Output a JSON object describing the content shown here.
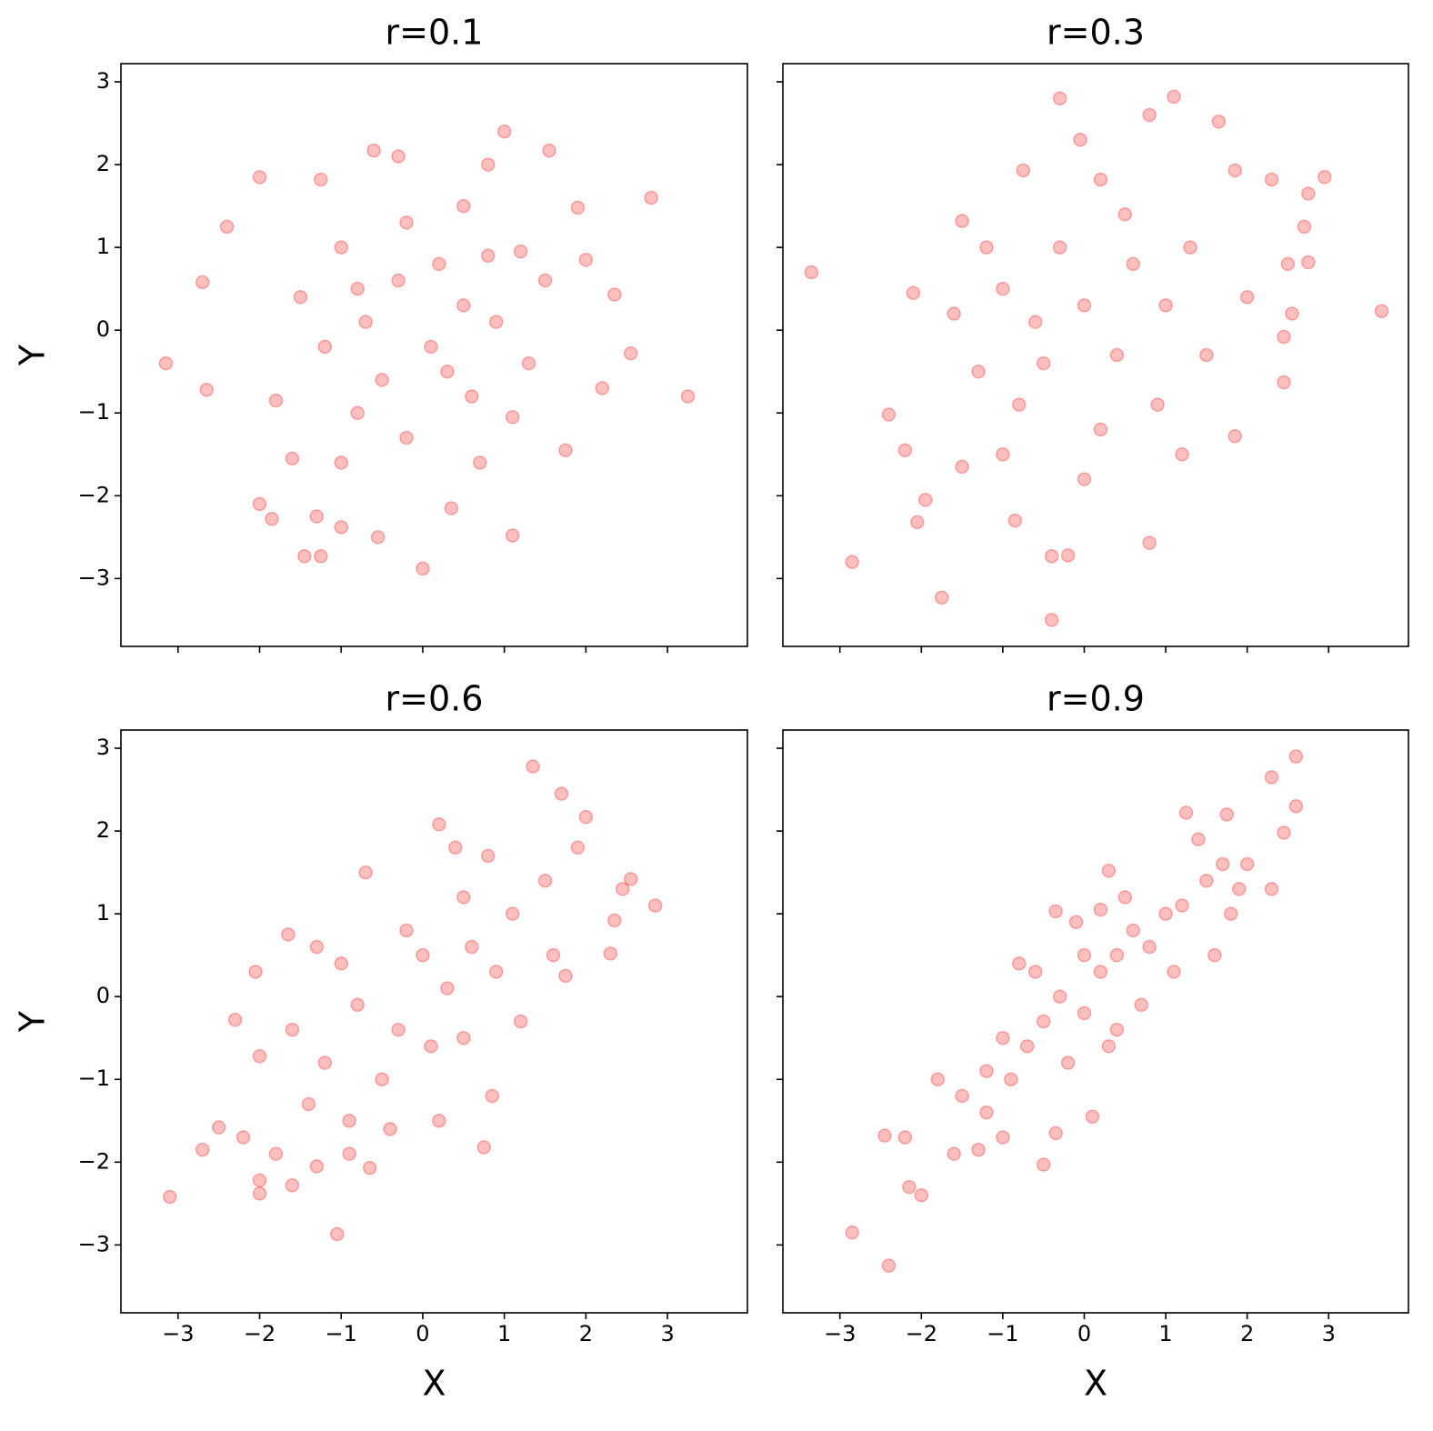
{
  "chart_data": [
    {
      "type": "scatter",
      "title": "r=0.1",
      "ylabel": "Y",
      "color": "#ff0000",
      "xlim": [
        -3.7,
        3.98
      ],
      "ylim": [
        -3.82,
        3.22
      ],
      "xticks": [
        -3,
        -2,
        -1,
        0,
        1,
        2,
        3
      ],
      "show_xtick_labels": false,
      "yticks": [
        {
          "value": -3,
          "label": "−3"
        },
        {
          "value": -2,
          "label": "−2"
        },
        {
          "value": -1,
          "label": "−1"
        },
        0,
        1,
        2,
        3
      ],
      "show_ytick_labels": true,
      "x": [
        -3.15,
        3.25,
        2.8,
        -2.4,
        -2.7,
        -2.65,
        -2.0,
        -2.0,
        -1.85,
        -1.45,
        -1.25,
        0.0,
        1.1,
        1.0,
        1.55,
        -0.6,
        -0.3,
        0.8,
        2.55,
        2.35,
        2.2,
        1.75,
        0.35,
        -0.55,
        -1.0,
        -1.3,
        -1.25,
        1.9,
        2.0,
        -1.6,
        -1.8,
        -1.5,
        -1.0,
        -0.7,
        -0.3,
        0.2,
        0.5,
        0.8,
        1.2,
        1.5,
        0.6,
        0.3,
        -0.2,
        -0.8,
        -1.2,
        0.1,
        -0.5,
        1.1,
        0.5,
        -0.2,
        1.3,
        -1.0,
        0.7,
        -0.8,
        0.9
      ],
      "y": [
        -0.4,
        -0.8,
        1.6,
        1.25,
        0.58,
        -0.72,
        1.85,
        -2.1,
        -2.28,
        -2.73,
        -2.73,
        -2.88,
        -2.48,
        2.4,
        2.17,
        2.17,
        2.1,
        2.0,
        -0.28,
        0.43,
        -0.7,
        -1.45,
        -2.15,
        -2.5,
        -2.38,
        -2.25,
        1.82,
        1.48,
        0.85,
        -1.55,
        -0.85,
        0.4,
        1.0,
        0.1,
        0.6,
        0.8,
        0.3,
        0.9,
        0.95,
        0.6,
        -0.8,
        -0.5,
        -1.3,
        -1.0,
        -0.2,
        -0.2,
        -0.6,
        -1.05,
        1.5,
        1.3,
        -0.4,
        -1.6,
        -1.6,
        0.5,
        0.1
      ]
    },
    {
      "type": "scatter",
      "title": "r=0.3",
      "color": "#ff0000",
      "xlim": [
        -3.7,
        3.98
      ],
      "ylim": [
        -3.82,
        3.22
      ],
      "xticks": [
        -3,
        -2,
        -1,
        0,
        1,
        2,
        3
      ],
      "show_xtick_labels": false,
      "yticks": [
        -3,
        -2,
        -1,
        0,
        1,
        2,
        3
      ],
      "show_ytick_labels": false,
      "x": [
        -3.35,
        3.65,
        -2.85,
        -1.75,
        -0.4,
        -0.3,
        1.1,
        1.65,
        2.95,
        2.3,
        2.75,
        2.7,
        2.75,
        2.5,
        2.55,
        2.45,
        2.45,
        1.85,
        0.8,
        -0.2,
        -0.4,
        -0.85,
        -2.4,
        -2.2,
        -2.05,
        -1.95,
        -1.5,
        -2.1,
        -1.5,
        -1.2,
        0.2,
        0.8,
        -0.05,
        1.85,
        -0.75,
        -1.0,
        -0.5,
        0.0,
        0.4,
        0.6,
        1.0,
        1.3,
        -0.3,
        0.2,
        -0.8,
        -1.3,
        0.9,
        1.5,
        -0.6,
        0.5,
        -1.0,
        0.0,
        1.2,
        -1.6,
        2.0
      ],
      "y": [
        0.7,
        0.23,
        -2.8,
        -3.23,
        -3.5,
        2.8,
        2.82,
        2.52,
        1.85,
        1.82,
        1.65,
        1.25,
        0.82,
        0.8,
        0.2,
        -0.08,
        -0.63,
        -1.28,
        -2.57,
        -2.72,
        -2.73,
        -2.3,
        -1.02,
        -1.45,
        -2.32,
        -2.05,
        -1.65,
        0.45,
        1.32,
        1.0,
        1.82,
        2.6,
        2.3,
        1.93,
        1.93,
        0.5,
        -0.4,
        0.3,
        -0.3,
        0.8,
        0.3,
        1.0,
        1.0,
        -1.2,
        -0.9,
        -0.5,
        -0.9,
        -0.3,
        0.1,
        1.4,
        -1.5,
        -1.8,
        -1.5,
        0.2,
        0.4
      ]
    },
    {
      "type": "scatter",
      "title": "r=0.6",
      "xlabel": "X",
      "ylabel": "Y",
      "color": "#ff0000",
      "xlim": [
        -3.7,
        3.98
      ],
      "ylim": [
        -3.82,
        3.22
      ],
      "xticks": [
        {
          "value": -3,
          "label": "−3"
        },
        {
          "value": -2,
          "label": "−2"
        },
        {
          "value": -1,
          "label": "−1"
        },
        0,
        1,
        2,
        3
      ],
      "show_xtick_labels": true,
      "yticks": [
        {
          "value": -3,
          "label": "−3"
        },
        {
          "value": -2,
          "label": "−2"
        },
        {
          "value": -1,
          "label": "−1"
        },
        0,
        1,
        2,
        3
      ],
      "show_ytick_labels": true,
      "x": [
        -3.1,
        -2.7,
        -2.5,
        -2.2,
        -2.3,
        -2.0,
        -2.0,
        -2.0,
        -2.05,
        -1.05,
        -0.65,
        -1.3,
        1.35,
        1.7,
        2.0,
        0.2,
        2.85,
        2.55,
        2.45,
        2.35,
        2.3,
        0.75,
        0.85,
        1.75,
        -1.65,
        -0.7,
        -1.6,
        -1.8,
        -1.4,
        -1.2,
        -0.9,
        -0.5,
        -0.8,
        -0.3,
        0.0,
        0.3,
        0.6,
        0.9,
        1.1,
        1.5,
        0.5,
        -0.2,
        0.1,
        0.5,
        -1.0,
        1.2,
        0.8,
        1.9,
        -0.4,
        0.2,
        -1.3,
        1.6,
        -0.9,
        0.4,
        -1.6
      ],
      "y": [
        -2.42,
        -1.85,
        -1.58,
        -1.7,
        -0.28,
        -2.38,
        -2.22,
        -0.72,
        0.3,
        -2.87,
        -2.07,
        -2.05,
        2.78,
        2.45,
        2.17,
        2.08,
        1.1,
        1.42,
        1.3,
        0.92,
        0.52,
        -1.82,
        -1.2,
        0.25,
        0.75,
        1.5,
        -2.28,
        -1.9,
        -1.3,
        -0.8,
        -1.5,
        -1.0,
        -0.1,
        -0.4,
        0.5,
        0.1,
        0.6,
        0.3,
        1.0,
        1.4,
        1.2,
        0.8,
        -0.6,
        -0.5,
        0.4,
        -0.3,
        1.7,
        1.8,
        -1.6,
        -1.5,
        0.6,
        0.5,
        -1.9,
        1.8,
        -0.4
      ]
    },
    {
      "type": "scatter",
      "title": "r=0.9",
      "xlabel": "X",
      "color": "#ff0000",
      "xlim": [
        -3.7,
        3.98
      ],
      "ylim": [
        -3.82,
        3.22
      ],
      "xticks": [
        {
          "value": -3,
          "label": "−3"
        },
        {
          "value": -2,
          "label": "−2"
        },
        {
          "value": -1,
          "label": "−1"
        },
        0,
        1,
        2,
        3
      ],
      "show_xtick_labels": true,
      "yticks": [
        -3,
        -2,
        -1,
        0,
        1,
        2,
        3
      ],
      "show_ytick_labels": false,
      "x": [
        -2.85,
        -2.4,
        -2.45,
        -2.0,
        -2.15,
        -2.2,
        2.6,
        2.3,
        2.6,
        2.45,
        2.3,
        1.75,
        1.25,
        -0.5,
        -0.35,
        0.1,
        -0.35,
        0.2,
        0.3,
        -1.6,
        -1.3,
        -1.0,
        -1.5,
        -1.2,
        -0.9,
        -1.0,
        -0.7,
        -0.5,
        -0.3,
        0.0,
        0.2,
        0.4,
        0.6,
        0.8,
        1.0,
        1.2,
        1.5,
        1.7,
        1.9,
        0.5,
        0.0,
        -0.6,
        -0.2,
        0.4,
        1.1,
        1.6,
        -1.8,
        -0.8,
        1.4,
        0.7,
        -0.1,
        1.8,
        -1.2,
        2.0,
        0.3
      ],
      "y": [
        -2.85,
        -3.25,
        -1.68,
        -2.4,
        -2.3,
        -1.7,
        2.9,
        2.65,
        2.3,
        1.98,
        1.3,
        2.2,
        2.22,
        -2.03,
        -1.65,
        -1.45,
        1.03,
        1.05,
        1.52,
        -1.9,
        -1.85,
        -1.7,
        -1.2,
        -0.9,
        -1.0,
        -0.5,
        -0.6,
        -0.3,
        0.0,
        -0.2,
        0.3,
        0.5,
        0.8,
        0.6,
        1.0,
        1.1,
        1.4,
        1.6,
        1.3,
        1.2,
        0.5,
        0.3,
        -0.8,
        -0.4,
        0.3,
        0.5,
        -1.0,
        0.4,
        1.9,
        -0.1,
        0.9,
        1.0,
        -1.4,
        1.6,
        -0.6
      ]
    }
  ]
}
